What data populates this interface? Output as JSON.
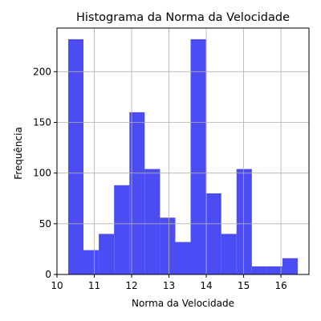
{
  "chart_data": {
    "type": "bar",
    "title": "Histograma da Norma da Velocidade",
    "xlabel": "Norma da Velocidade",
    "ylabel": "Frequência",
    "bin_edges": [
      10.3,
      10.71,
      11.12,
      11.53,
      11.94,
      12.35,
      12.76,
      13.17,
      13.58,
      13.99,
      14.4,
      14.81,
      15.22,
      15.63,
      16.04,
      16.45
    ],
    "values": [
      232,
      24,
      40,
      88,
      160,
      104,
      56,
      32,
      232,
      80,
      40,
      104,
      8,
      8,
      16
    ],
    "xlim": [
      10.0,
      16.75
    ],
    "ylim": [
      0,
      243
    ],
    "xticks": [
      10,
      11,
      12,
      13,
      14,
      15,
      16
    ],
    "yticks": [
      0,
      50,
      100,
      150,
      200
    ],
    "grid": true,
    "bar_color": "#4c4cf5"
  }
}
